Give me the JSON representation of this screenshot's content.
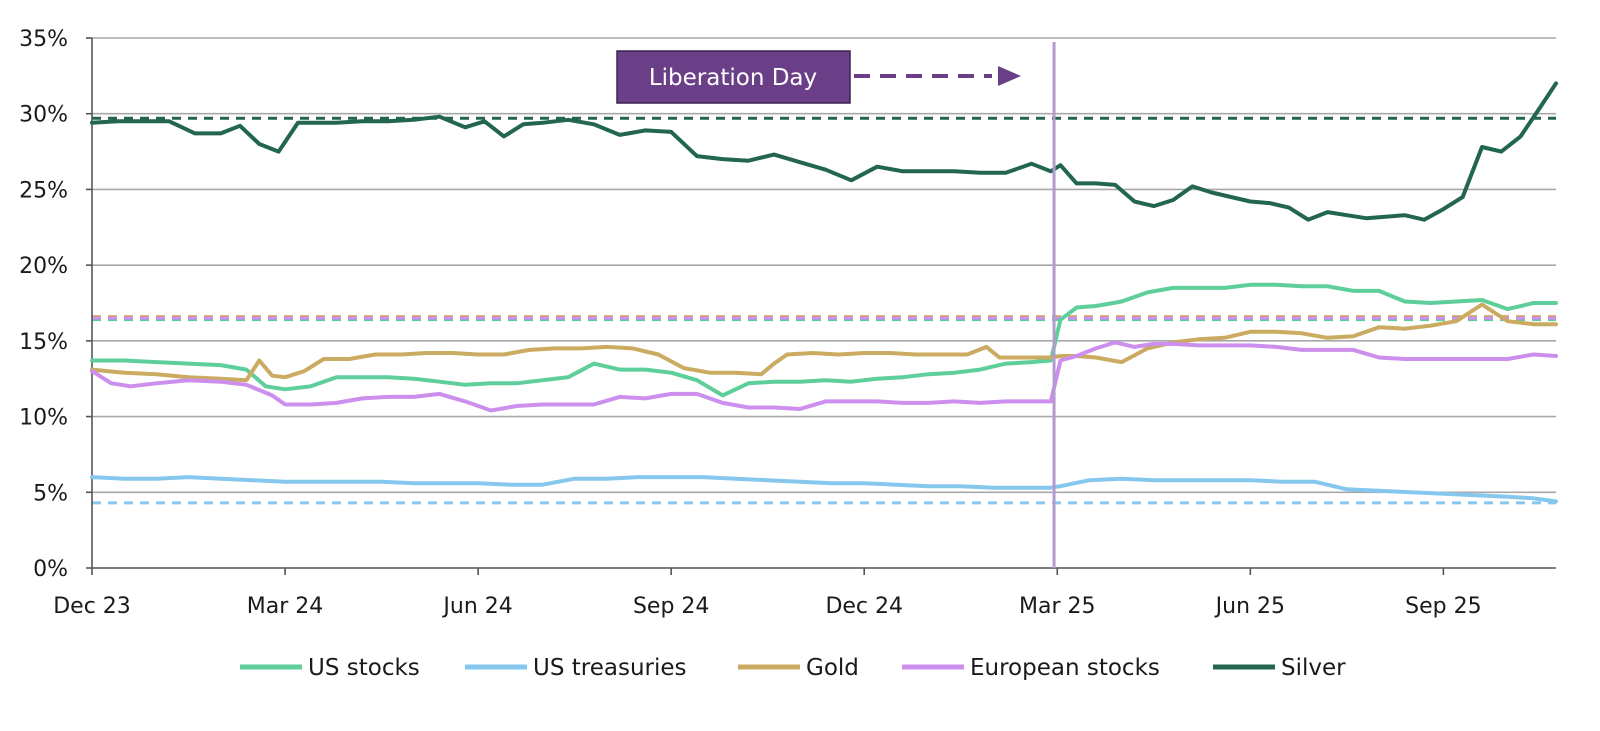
{
  "chart_data": {
    "type": "line",
    "title": "",
    "xlabel": "",
    "ylabel": "",
    "ylim": [
      0,
      35
    ],
    "y_ticks": [
      0,
      5,
      10,
      15,
      20,
      25,
      30,
      35
    ],
    "y_tick_format": "%",
    "grid": true,
    "legend_position": "bottom",
    "x_domain": [
      0,
      22.75
    ],
    "x_ticks": [
      {
        "label": "Dec 23",
        "x": 0
      },
      {
        "label": "Mar 24",
        "x": 3
      },
      {
        "label": "Jun 24",
        "x": 6
      },
      {
        "label": "Sep 24",
        "x": 9
      },
      {
        "label": "Dec 24",
        "x": 12
      },
      {
        "label": "Mar 25",
        "x": 15
      },
      {
        "label": "Jun 25",
        "x": 18
      },
      {
        "label": "Sep 25",
        "x": 21
      }
    ],
    "annotation": {
      "label": "Liberation Day",
      "x": 14.95
    },
    "series": [
      {
        "name": "US stocks",
        "color": "#5ece9b",
        "avg": 16.4,
        "x": [
          0,
          0.5,
          1,
          1.5,
          2,
          2.4,
          2.7,
          3,
          3.4,
          3.8,
          4.2,
          4.6,
          5,
          5.4,
          5.8,
          6.2,
          6.6,
          7,
          7.4,
          7.8,
          8.2,
          8.6,
          9,
          9.4,
          9.8,
          10.2,
          10.6,
          11,
          11.4,
          11.8,
          12.2,
          12.6,
          13,
          13.4,
          13.8,
          14.2,
          14.6,
          14.9,
          15.05,
          15.3,
          15.6,
          16,
          16.4,
          16.8,
          17.2,
          17.6,
          18,
          18.4,
          18.8,
          19.2,
          19.6,
          20,
          20.4,
          20.8,
          21.2,
          21.6,
          22,
          22.4,
          22.75
        ],
        "values": [
          13.7,
          13.7,
          13.6,
          13.5,
          13.4,
          13.1,
          12.0,
          11.8,
          12.0,
          12.6,
          12.6,
          12.6,
          12.5,
          12.3,
          12.1,
          12.2,
          12.2,
          12.4,
          12.6,
          13.5,
          13.1,
          13.1,
          12.9,
          12.4,
          11.4,
          12.2,
          12.3,
          12.3,
          12.4,
          12.3,
          12.5,
          12.6,
          12.8,
          12.9,
          13.1,
          13.5,
          13.6,
          13.7,
          16.4,
          17.2,
          17.3,
          17.6,
          18.2,
          18.5,
          18.5,
          18.5,
          18.7,
          18.7,
          18.6,
          18.6,
          18.3,
          18.3,
          17.6,
          17.5,
          17.6,
          17.7,
          17.1,
          17.5,
          17.5
        ]
      },
      {
        "name": "US treasuries",
        "color": "#86c7ee",
        "avg": 4.3,
        "x": [
          0,
          0.5,
          1,
          1.5,
          2,
          2.5,
          3,
          3.5,
          4,
          4.5,
          5,
          5.5,
          6,
          6.5,
          7,
          7.5,
          8,
          8.5,
          9,
          9.5,
          10,
          10.5,
          11,
          11.5,
          12,
          12.5,
          13,
          13.5,
          14,
          14.5,
          14.9,
          15.05,
          15.5,
          16,
          16.5,
          17,
          17.5,
          18,
          18.5,
          19,
          19.5,
          20,
          20.5,
          21,
          21.5,
          22,
          22.4,
          22.75
        ],
        "values": [
          6.0,
          5.9,
          5.9,
          6.0,
          5.9,
          5.8,
          5.7,
          5.7,
          5.7,
          5.7,
          5.6,
          5.6,
          5.6,
          5.5,
          5.5,
          5.9,
          5.9,
          6.0,
          6.0,
          6.0,
          5.9,
          5.8,
          5.7,
          5.6,
          5.6,
          5.5,
          5.4,
          5.4,
          5.3,
          5.3,
          5.3,
          5.4,
          5.8,
          5.9,
          5.8,
          5.8,
          5.8,
          5.8,
          5.7,
          5.7,
          5.2,
          5.1,
          5.0,
          4.9,
          4.8,
          4.7,
          4.6,
          4.4
        ]
      },
      {
        "name": "Gold",
        "color": "#cbab62",
        "avg": 16.6,
        "x": [
          0,
          0.5,
          1,
          1.5,
          2,
          2.4,
          2.6,
          2.8,
          3,
          3.3,
          3.6,
          4,
          4.4,
          4.8,
          5.2,
          5.6,
          6,
          6.4,
          6.8,
          7.2,
          7.6,
          8,
          8.4,
          8.8,
          9.2,
          9.6,
          10,
          10.4,
          10.6,
          10.8,
          11.2,
          11.6,
          12,
          12.4,
          12.8,
          13.2,
          13.6,
          13.9,
          14.1,
          14.4,
          14.7,
          14.9,
          15.05,
          15.3,
          15.6,
          16,
          16.4,
          16.8,
          17.2,
          17.6,
          18,
          18.4,
          18.8,
          19.2,
          19.6,
          20,
          20.4,
          20.8,
          21.2,
          21.6,
          22,
          22.4,
          22.75
        ],
        "values": [
          13.1,
          12.9,
          12.8,
          12.6,
          12.5,
          12.4,
          13.7,
          12.7,
          12.6,
          13.0,
          13.8,
          13.8,
          14.1,
          14.1,
          14.2,
          14.2,
          14.1,
          14.1,
          14.4,
          14.5,
          14.5,
          14.6,
          14.5,
          14.1,
          13.2,
          12.9,
          12.9,
          12.8,
          13.5,
          14.1,
          14.2,
          14.1,
          14.2,
          14.2,
          14.1,
          14.1,
          14.1,
          14.6,
          13.9,
          13.9,
          13.9,
          13.9,
          14.0,
          14.0,
          13.9,
          13.6,
          14.5,
          14.9,
          15.1,
          15.2,
          15.6,
          15.6,
          15.5,
          15.2,
          15.3,
          15.9,
          15.8,
          16.0,
          16.3,
          17.4,
          16.3,
          16.1,
          16.1
        ]
      },
      {
        "name": "European stocks",
        "color": "#cc8fee",
        "avg": 16.5,
        "x": [
          0,
          0.3,
          0.6,
          1,
          1.5,
          2,
          2.4,
          2.8,
          3,
          3.4,
          3.8,
          4.2,
          4.6,
          5,
          5.4,
          5.8,
          6.2,
          6.6,
          7,
          7.4,
          7.8,
          8.2,
          8.6,
          9,
          9.4,
          9.8,
          10.2,
          10.6,
          11,
          11.4,
          11.8,
          12.2,
          12.6,
          13,
          13.4,
          13.8,
          14.2,
          14.6,
          14.9,
          15.05,
          15.3,
          15.6,
          15.9,
          16.2,
          16.5,
          16.8,
          17.2,
          17.6,
          18,
          18.4,
          18.8,
          19.2,
          19.6,
          20,
          20.4,
          20.8,
          21.2,
          21.6,
          22,
          22.4,
          22.75
        ],
        "values": [
          13.0,
          12.2,
          12.0,
          12.2,
          12.4,
          12.3,
          12.1,
          11.4,
          10.8,
          10.8,
          10.9,
          11.2,
          11.3,
          11.3,
          11.5,
          11.0,
          10.4,
          10.7,
          10.8,
          10.8,
          10.8,
          11.3,
          11.2,
          11.5,
          11.5,
          10.9,
          10.6,
          10.6,
          10.5,
          11.0,
          11.0,
          11.0,
          10.9,
          10.9,
          11.0,
          10.9,
          11.0,
          11.0,
          11.0,
          13.7,
          14.0,
          14.5,
          14.9,
          14.6,
          14.8,
          14.8,
          14.7,
          14.7,
          14.7,
          14.6,
          14.4,
          14.4,
          14.4,
          13.9,
          13.8,
          13.8,
          13.8,
          13.8,
          13.8,
          14.1,
          14.0
        ]
      },
      {
        "name": "Silver",
        "color": "#226551",
        "avg": 29.7,
        "x": [
          0,
          0.4,
          0.8,
          1.2,
          1.6,
          2,
          2.3,
          2.6,
          2.9,
          3.2,
          3.5,
          3.8,
          4.2,
          4.6,
          5,
          5.4,
          5.8,
          6.1,
          6.4,
          6.7,
          7,
          7.4,
          7.8,
          8.2,
          8.6,
          9,
          9.4,
          9.8,
          10.2,
          10.6,
          11,
          11.4,
          11.8,
          12.2,
          12.6,
          13,
          13.4,
          13.8,
          14.2,
          14.6,
          14.9,
          15.05,
          15.3,
          15.6,
          15.9,
          16.2,
          16.5,
          16.8,
          17.1,
          17.4,
          17.7,
          18,
          18.3,
          18.6,
          18.9,
          19.2,
          19.5,
          19.8,
          20.1,
          20.4,
          20.7,
          21,
          21.3,
          21.6,
          21.9,
          22.2,
          22.5,
          22.75
        ],
        "values": [
          29.4,
          29.5,
          29.5,
          29.5,
          28.7,
          28.7,
          29.2,
          28.0,
          27.5,
          29.4,
          29.4,
          29.4,
          29.5,
          29.5,
          29.6,
          29.8,
          29.1,
          29.5,
          28.5,
          29.3,
          29.4,
          29.6,
          29.3,
          28.6,
          28.9,
          28.8,
          27.2,
          27.0,
          26.9,
          27.3,
          26.8,
          26.3,
          25.6,
          26.5,
          26.2,
          26.2,
          26.2,
          26.1,
          26.1,
          26.7,
          26.2,
          26.6,
          25.4,
          25.4,
          25.3,
          24.2,
          23.9,
          24.3,
          25.2,
          24.8,
          24.5,
          24.2,
          24.1,
          23.8,
          23.0,
          23.5,
          23.3,
          23.1,
          23.2,
          23.3,
          23.0,
          23.7,
          24.5,
          27.8,
          27.5,
          28.5,
          30.4,
          32.0
        ]
      }
    ]
  }
}
